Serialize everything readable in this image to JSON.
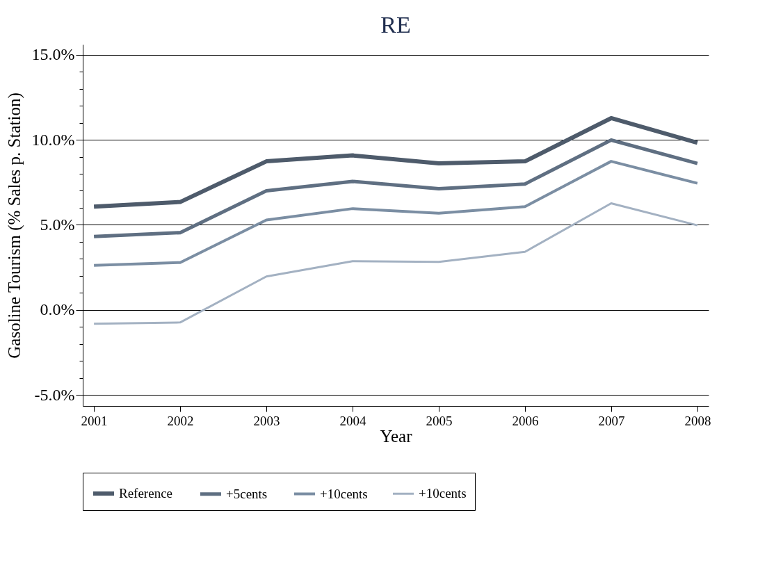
{
  "chart_data": {
    "type": "line",
    "title": "RE",
    "xlabel": "Year",
    "ylabel": "Gasoline Tourism (% Sales p. Station)",
    "x": [
      2001,
      2002,
      2003,
      2004,
      2005,
      2006,
      2007,
      2008
    ],
    "series": [
      {
        "name": "Reference",
        "color": "#4e5b6b",
        "values": [
          6.07,
          6.34,
          8.73,
          9.08,
          8.61,
          8.73,
          11.27,
          9.82
        ]
      },
      {
        "name": "+5cents",
        "color": "#5f6f82",
        "values": [
          4.31,
          4.54,
          7.0,
          7.55,
          7.12,
          7.4,
          9.98,
          8.61
        ]
      },
      {
        "name": "+10cents",
        "color": "#7b8ea3",
        "values": [
          2.62,
          2.78,
          5.28,
          5.95,
          5.68,
          6.07,
          8.73,
          7.44
        ]
      },
      {
        "name": "+10cents",
        "color": "#a3b1c2",
        "values": [
          -0.82,
          -0.74,
          1.96,
          2.86,
          2.82,
          3.41,
          6.26,
          4.97
        ]
      }
    ],
    "xlim": [
      2000.87,
      2008.13
    ],
    "xticks": [
      2001,
      2002,
      2003,
      2004,
      2005,
      2006,
      2007,
      2008
    ],
    "ylim": [
      -5.65,
      15.6
    ],
    "yticks": [
      {
        "value": -5,
        "label": "-5.0%"
      },
      {
        "value": -4,
        "label": null
      },
      {
        "value": -3,
        "label": null
      },
      {
        "value": -2,
        "label": null
      },
      {
        "value": -1,
        "label": null
      },
      {
        "value": 0,
        "label": "0.0%"
      },
      {
        "value": 1,
        "label": null
      },
      {
        "value": 2,
        "label": null
      },
      {
        "value": 3,
        "label": null
      },
      {
        "value": 4,
        "label": null
      },
      {
        "value": 5,
        "label": "5.0%"
      },
      {
        "value": 6,
        "label": null
      },
      {
        "value": 7,
        "label": null
      },
      {
        "value": 8,
        "label": null
      },
      {
        "value": 9,
        "label": null
      },
      {
        "value": 10,
        "label": "10.0%"
      },
      {
        "value": 11,
        "label": null
      },
      {
        "value": 12,
        "label": null
      },
      {
        "value": 13,
        "label": null
      },
      {
        "value": 14,
        "label": null
      },
      {
        "value": 15,
        "label": "15.0%"
      }
    ],
    "grid": "y",
    "legend": "bottom",
    "marker": "none",
    "line_style": "solid"
  }
}
